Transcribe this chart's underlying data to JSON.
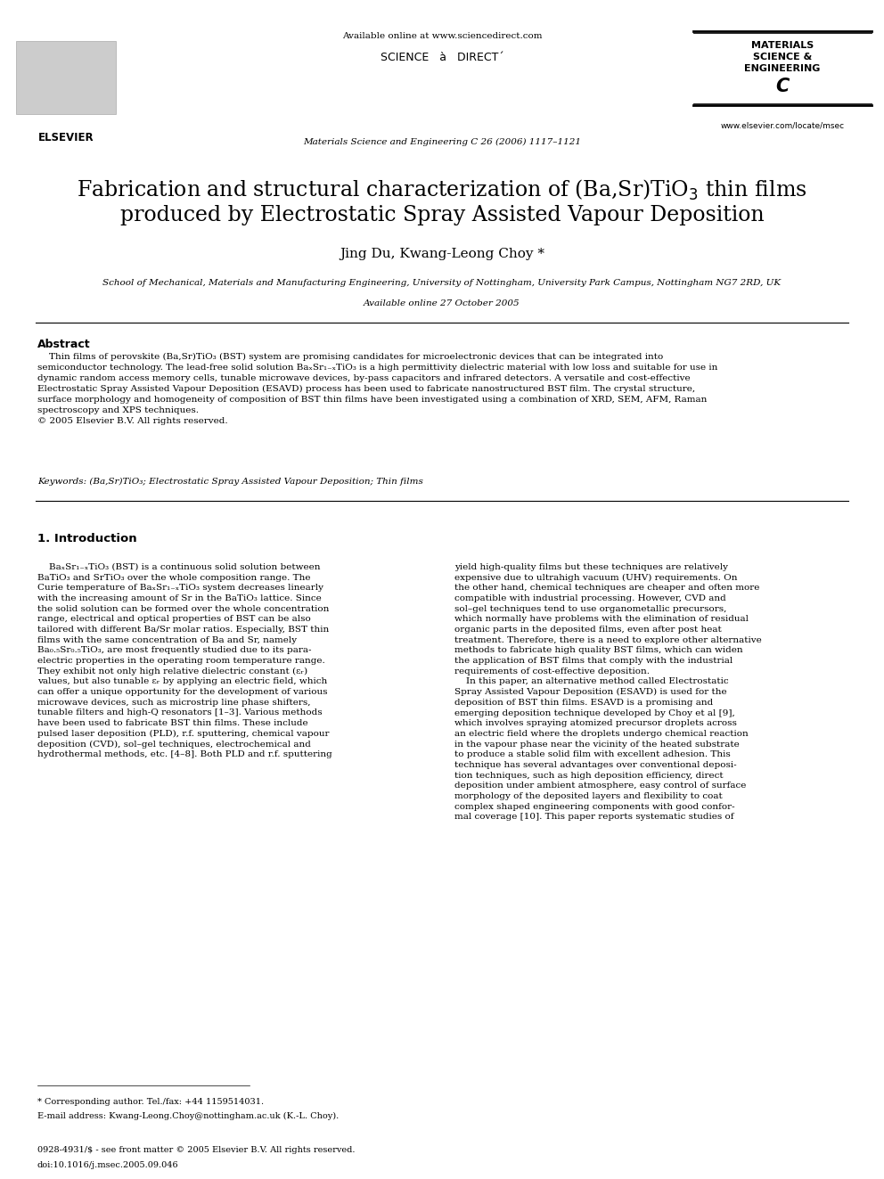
{
  "background_color": "#ffffff",
  "header_available_online": "Available online at www.sciencedirect.com",
  "header_journal_line": "Materials Science and Engineering C 26 (2006) 1117–1121",
  "journal_name_line1": "MATERIALS",
  "journal_name_line2": "SCIENCE &",
  "journal_name_line3": "ENGINEERING",
  "journal_name_line4": "C",
  "journal_url": "www.elsevier.com/locate/msec",
  "elsevier_label": "ELSEVIER",
  "title_line1": "Fabrication and structural characterization of (Ba,Sr)TiO$_3$ thin films",
  "title_line2": "produced by Electrostatic Spray Assisted Vapour Deposition",
  "authors": "Jing Du, Kwang-Leong Choy *",
  "affiliation": "School of Mechanical, Materials and Manufacturing Engineering, University of Nottingham, University Park Campus, Nottingham NG7 2RD, UK",
  "available_online": "Available online 27 October 2005",
  "abstract_heading": "Abstract",
  "keywords_text": "Keywords: (Ba,Sr)TiO₃; Electrostatic Spray Assisted Vapour Deposition; Thin films",
  "section1_heading": "1. Introduction",
  "footnote_star": "* Corresponding author. Tel./fax: +44 1159514031.",
  "footnote_email": "E-mail address: Kwang-Leong.Choy@nottingham.ac.uk (K.-L. Choy).",
  "footer_issn": "0928-4931/$ - see front matter © 2005 Elsevier B.V. All rights reserved.",
  "footer_doi": "doi:10.1016/j.msec.2005.09.046"
}
